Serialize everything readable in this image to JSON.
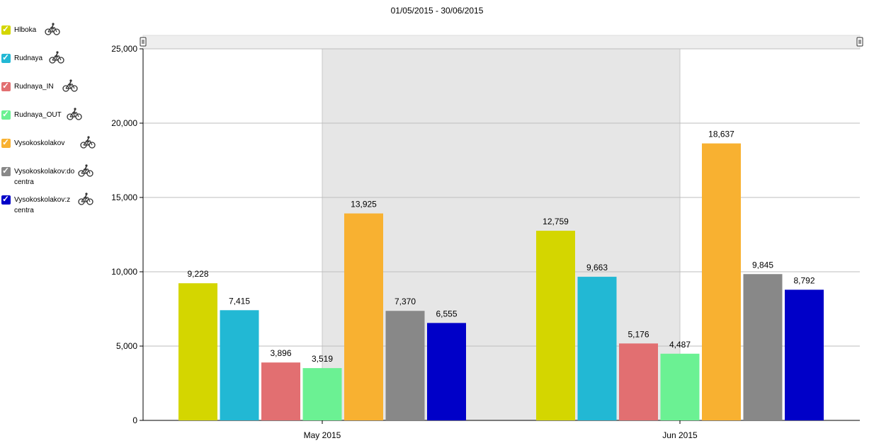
{
  "title": "01/05/2015 - 30/06/2015",
  "legend": [
    {
      "label": "Hlboka",
      "color": "#d4d600",
      "icon": "bicycle-icon"
    },
    {
      "label": "Rudnaya",
      "color": "#22b8d4",
      "icon": "bicycle-icon"
    },
    {
      "label": "Rudnaya_IN",
      "color": "#e26f71",
      "icon": "bicycle-icon"
    },
    {
      "label": "Rudnaya_OUT",
      "color": "#6bf193",
      "icon": "bicycle-icon"
    },
    {
      "label": "Vysokoskolakov",
      "color": "#f8b131",
      "icon": "bicycle-icon"
    },
    {
      "label": "Vysokoskolakov:do centra",
      "color": "#888888",
      "icon": "bicycle-icon"
    },
    {
      "label": "Vysokoskolakov:z centra",
      "color": "#0000c8",
      "icon": "bicycle-icon"
    }
  ],
  "chart_data": {
    "type": "bar",
    "title": "01/05/2015 - 30/06/2015",
    "xlabel": "",
    "ylabel": "",
    "categories": [
      "May 2015",
      "Jun 2015"
    ],
    "series": [
      {
        "name": "Hlboka",
        "values": [
          9228,
          12759
        ],
        "labels": [
          "9,228",
          "12,759"
        ],
        "color": "#d4d600"
      },
      {
        "name": "Rudnaya",
        "values": [
          7415,
          9663
        ],
        "labels": [
          "7,415",
          "9,663"
        ],
        "color": "#22b8d4"
      },
      {
        "name": "Rudnaya_IN",
        "values": [
          3896,
          5176
        ],
        "labels": [
          "3,896",
          "5,176"
        ],
        "color": "#e26f71"
      },
      {
        "name": "Rudnaya_OUT",
        "values": [
          3519,
          4487
        ],
        "labels": [
          "3,519",
          "4,487"
        ],
        "color": "#6bf193"
      },
      {
        "name": "Vysokoskolakov",
        "values": [
          13925,
          18637
        ],
        "labels": [
          "13,925",
          "18,637"
        ],
        "color": "#f8b131"
      },
      {
        "name": "Vysokoskolakov:do centra",
        "values": [
          7370,
          9845
        ],
        "labels": [
          "7,370",
          "9,845"
        ],
        "color": "#888888"
      },
      {
        "name": "Vysokoskolakov:z centra",
        "values": [
          6555,
          8792
        ],
        "labels": [
          "6,555",
          "8,792"
        ],
        "color": "#0000c8"
      }
    ],
    "ylim": [
      0,
      25000
    ],
    "yticks": [
      0,
      5000,
      10000,
      15000,
      20000,
      25000
    ],
    "ytick_labels": [
      "0",
      "5,000",
      "10,000",
      "15,000",
      "20,000",
      "25,000"
    ],
    "grid": true,
    "legend_position": "left",
    "highlight_band": "May 2015 second half - Jun 2015 first half",
    "scrollbar": "top"
  }
}
